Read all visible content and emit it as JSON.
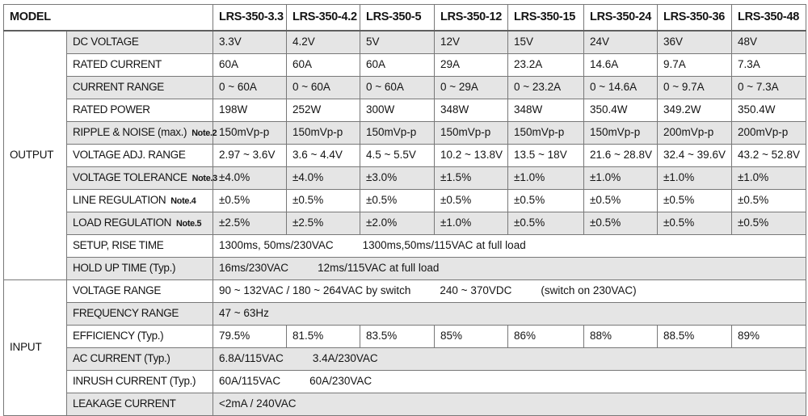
{
  "colors": {
    "row_shade": "#e5e5e5",
    "border": "#787878",
    "outer_border": "#5e5e5e",
    "text": "#141414",
    "background": "#ffffff"
  },
  "table": {
    "model_header": "MODEL",
    "models": [
      "LRS-350-3.3",
      "LRS-350-4.2",
      "LRS-350-5",
      "LRS-350-12",
      "LRS-350-15",
      "LRS-350-24",
      "LRS-350-36",
      "LRS-350-48"
    ],
    "sections": [
      {
        "name": "OUTPUT",
        "rows": [
          {
            "label": "DC VOLTAGE",
            "note": "",
            "values": [
              "3.3V",
              "4.2V",
              "5V",
              "12V",
              "15V",
              "24V",
              "36V",
              "48V"
            ]
          },
          {
            "label": "RATED CURRENT",
            "note": "",
            "values": [
              "60A",
              "60A",
              "60A",
              "29A",
              "23.2A",
              "14.6A",
              "9.7A",
              "7.3A"
            ]
          },
          {
            "label": "CURRENT RANGE",
            "note": "",
            "values": [
              "0 ~ 60A",
              "0 ~ 60A",
              "0 ~ 60A",
              "0 ~ 29A",
              "0 ~ 23.2A",
              "0 ~ 14.6A",
              "0 ~ 9.7A",
              "0 ~ 7.3A"
            ]
          },
          {
            "label": "RATED POWER",
            "note": "",
            "values": [
              "198W",
              "252W",
              "300W",
              "348W",
              "348W",
              "350.4W",
              "349.2W",
              "350.4W"
            ]
          },
          {
            "label": "RIPPLE & NOISE (max.)",
            "note": "Note.2",
            "values": [
              "150mVp-p",
              "150mVp-p",
              "150mVp-p",
              "150mVp-p",
              "150mVp-p",
              "150mVp-p",
              "200mVp-p",
              "200mVp-p"
            ]
          },
          {
            "label": "VOLTAGE ADJ. RANGE",
            "note": "",
            "values": [
              "2.97 ~ 3.6V",
              "3.6 ~ 4.4V",
              "4.5 ~ 5.5V",
              "10.2 ~ 13.8V",
              "13.5 ~ 18V",
              "21.6 ~ 28.8V",
              "32.4 ~ 39.6V",
              "43.2 ~ 52.8V"
            ]
          },
          {
            "label": "VOLTAGE TOLERANCE",
            "note": "Note.3",
            "values": [
              "±4.0%",
              "±4.0%",
              "±3.0%",
              "±1.5%",
              "±1.0%",
              "±1.0%",
              "±1.0%",
              "±1.0%"
            ]
          },
          {
            "label": "LINE REGULATION",
            "note": "Note.4",
            "values": [
              "±0.5%",
              "±0.5%",
              "±0.5%",
              "±0.5%",
              "±0.5%",
              "±0.5%",
              "±0.5%",
              "±0.5%"
            ]
          },
          {
            "label": "LOAD REGULATION",
            "note": "Note.5",
            "values": [
              "±2.5%",
              "±2.5%",
              "±2.0%",
              "±1.0%",
              "±0.5%",
              "±0.5%",
              "±0.5%",
              "±0.5%"
            ]
          },
          {
            "label": "SETUP, RISE TIME",
            "note": "",
            "segments": [
              "1300ms, 50ms/230VAC",
              "1300ms,50ms/115VAC at full load"
            ]
          },
          {
            "label": "HOLD UP TIME (Typ.)",
            "note": "",
            "segments": [
              "16ms/230VAC",
              "12ms/115VAC at full load"
            ]
          }
        ]
      },
      {
        "name": "INPUT",
        "rows": [
          {
            "label": "VOLTAGE RANGE",
            "note": "",
            "segments": [
              "90 ~ 132VAC / 180 ~ 264VAC by switch",
              "240 ~ 370VDC",
              "(switch on 230VAC)"
            ]
          },
          {
            "label": "FREQUENCY RANGE",
            "note": "",
            "segments": [
              "47 ~ 63Hz"
            ]
          },
          {
            "label": "EFFICIENCY (Typ.)",
            "note": "",
            "values": [
              "79.5%",
              "81.5%",
              "83.5%",
              "85%",
              "86%",
              "88%",
              "88.5%",
              "89%"
            ]
          },
          {
            "label": "AC CURRENT (Typ.)",
            "note": "",
            "segments": [
              "6.8A/115VAC",
              "3.4A/230VAC"
            ]
          },
          {
            "label": "INRUSH CURRENT (Typ.)",
            "note": "",
            "segments": [
              "60A/115VAC",
              "60A/230VAC"
            ]
          },
          {
            "label": "LEAKAGE CURRENT",
            "note": "",
            "segments": [
              "<2mA / 240VAC"
            ]
          }
        ]
      }
    ]
  }
}
